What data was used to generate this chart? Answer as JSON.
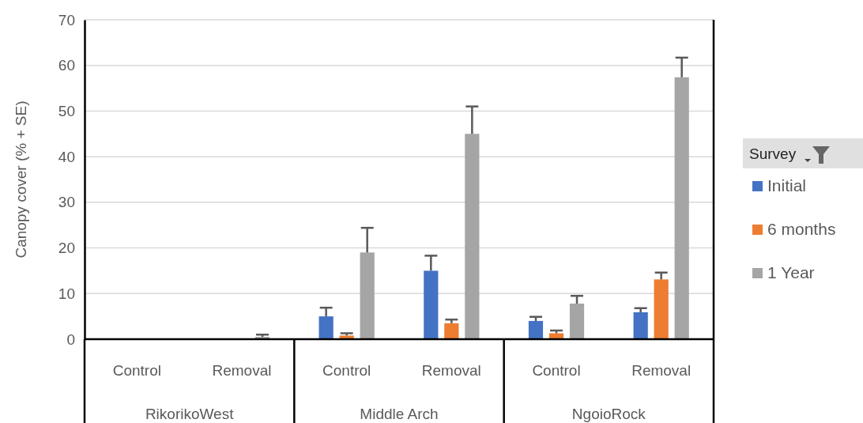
{
  "chart_data": {
    "type": "bar",
    "ylabel": "Canopy cover (% + SE)",
    "legend_title": "Survey",
    "legend": "right",
    "grid": "y",
    "categories": [
      "Control",
      "Removal",
      "Control",
      "Removal",
      "Control",
      "Removal"
    ],
    "annotations": [
      "RikorikoWest",
      "Middle Arch",
      "NgoioRock"
    ],
    "ylim": [
      0,
      70
    ],
    "yticks": [
      0,
      10,
      20,
      30,
      40,
      50,
      60,
      70
    ],
    "series": [
      {
        "name": "Initial",
        "color": "#4472c4",
        "values": [
          0,
          0,
          5,
          15,
          4,
          5.9
        ],
        "errors": [
          null,
          null,
          1.9,
          3.3,
          0.9,
          0.9
        ]
      },
      {
        "name": "6 months",
        "color": "#ed7d31",
        "values": [
          0,
          0,
          0.8,
          3.5,
          1.3,
          13.1
        ],
        "errors": [
          null,
          null,
          0.5,
          0.8,
          0.6,
          1.5
        ]
      },
      {
        "name": "1 Year",
        "color": "#a5a5a5",
        "values": [
          0,
          0.5,
          19,
          45,
          7.8,
          57.4
        ],
        "errors": [
          null,
          0.5,
          5.4,
          6,
          1.7,
          4.3
        ]
      }
    ]
  }
}
